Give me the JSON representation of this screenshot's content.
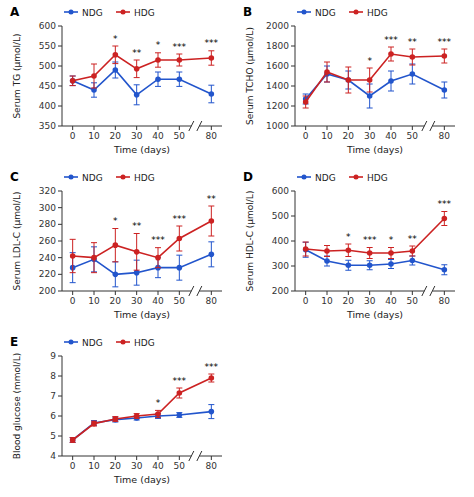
{
  "chart_data": [
    {
      "type": "line",
      "panel_label": "A",
      "xlabel": "Time (days)",
      "ylabel": "Serum TG (μmol/L)",
      "categories": [
        "0",
        "10",
        "20",
        "30",
        "40",
        "50",
        "80"
      ],
      "ylim": [
        350,
        600
      ],
      "yticks": [
        350,
        400,
        450,
        500,
        550,
        600
      ],
      "grid": false,
      "legend": "upper left",
      "series": [
        {
          "name": "NDG",
          "color": "#2255CC",
          "marker": "circle",
          "line_style": "solid",
          "values": [
            463,
            440,
            490,
            428,
            467,
            467,
            430
          ],
          "errors": [
            12,
            18,
            20,
            25,
            18,
            18,
            22
          ]
        },
        {
          "name": "HDG",
          "color": "#CC2222",
          "marker": "circle",
          "line_style": "solid",
          "values": [
            463,
            475,
            528,
            493,
            515,
            515,
            520
          ],
          "errors": [
            12,
            30,
            22,
            22,
            18,
            15,
            18
          ],
          "annotations": [
            null,
            null,
            "*",
            "**",
            "*",
            "***",
            "***"
          ]
        }
      ]
    },
    {
      "type": "line",
      "panel_label": "B",
      "xlabel": "Time (days)",
      "ylabel": "Serum TCHO (μmol/L)",
      "categories": [
        "0",
        "10",
        "20",
        "30",
        "40",
        "50",
        "80"
      ],
      "ylim": [
        1000,
        2000
      ],
      "yticks": [
        1000,
        1200,
        1400,
        1600,
        1800,
        2000
      ],
      "grid": false,
      "legend": "upper left",
      "series": [
        {
          "name": "NDG",
          "color": "#2255CC",
          "marker": "circle",
          "line_style": "solid",
          "values": [
            1270,
            1520,
            1460,
            1300,
            1450,
            1520,
            1360
          ],
          "errors": [
            50,
            80,
            90,
            120,
            100,
            100,
            80
          ]
        },
        {
          "name": "HDG",
          "color": "#CC2222",
          "marker": "circle",
          "line_style": "solid",
          "values": [
            1240,
            1540,
            1460,
            1460,
            1720,
            1690,
            1700
          ],
          "errors": [
            60,
            100,
            130,
            120,
            70,
            80,
            70
          ],
          "annotations": [
            null,
            null,
            null,
            "*",
            "***",
            "**",
            "***"
          ]
        }
      ]
    },
    {
      "type": "line",
      "panel_label": "C",
      "xlabel": "Time (days)",
      "ylabel": "Serum LDL-C (μmol/L)",
      "categories": [
        "0",
        "10",
        "20",
        "30",
        "40",
        "50",
        "80"
      ],
      "ylim": [
        200,
        320
      ],
      "yticks": [
        200,
        220,
        240,
        260,
        280,
        300,
        320
      ],
      "grid": false,
      "legend": "upper left",
      "series": [
        {
          "name": "NDG",
          "color": "#2255CC",
          "marker": "circle",
          "line_style": "solid",
          "values": [
            228,
            238,
            220,
            222,
            228,
            228,
            244
          ],
          "errors": [
            18,
            15,
            15,
            15,
            12,
            15,
            15
          ]
        },
        {
          "name": "HDG",
          "color": "#CC2222",
          "marker": "circle",
          "line_style": "solid",
          "values": [
            242,
            240,
            255,
            247,
            240,
            263,
            284
          ],
          "errors": [
            20,
            18,
            20,
            22,
            12,
            15,
            18
          ],
          "annotations": [
            null,
            null,
            "*",
            "**",
            "***",
            "***",
            "**"
          ]
        }
      ]
    },
    {
      "type": "line",
      "panel_label": "D",
      "xlabel": "Time (days)",
      "ylabel": "Serum HDL-C (μmol/L)",
      "categories": [
        "0",
        "10",
        "20",
        "30",
        "40",
        "50",
        "80"
      ],
      "ylim": [
        200,
        600
      ],
      "yticks": [
        200,
        300,
        400,
        500,
        600
      ],
      "grid": false,
      "legend": "upper left",
      "series": [
        {
          "name": "NDG",
          "color": "#2255CC",
          "marker": "circle",
          "line_style": "solid",
          "values": [
            365,
            320,
            303,
            303,
            308,
            322,
            285
          ],
          "errors": [
            30,
            20,
            20,
            18,
            18,
            18,
            20
          ]
        },
        {
          "name": "HDG",
          "color": "#CC2222",
          "marker": "circle",
          "line_style": "solid",
          "values": [
            368,
            360,
            363,
            352,
            352,
            360,
            490
          ],
          "errors": [
            28,
            22,
            25,
            22,
            22,
            20,
            28
          ],
          "annotations": [
            null,
            null,
            "*",
            "***",
            "*",
            "**",
            "***"
          ]
        }
      ]
    },
    {
      "type": "line",
      "panel_label": "E",
      "xlabel": "Time (days)",
      "ylabel": "Blood glucose (mmol/L)",
      "categories": [
        "0",
        "10",
        "20",
        "30",
        "40",
        "50",
        "80"
      ],
      "ylim": [
        4,
        9
      ],
      "yticks": [
        4,
        5,
        6,
        7,
        8,
        9
      ],
      "grid": false,
      "legend": "upper left",
      "series": [
        {
          "name": "NDG",
          "color": "#2255CC",
          "marker": "circle",
          "line_style": "solid",
          "values": [
            4.8,
            5.65,
            5.82,
            5.9,
            6.0,
            6.05,
            6.22
          ],
          "errors": [
            0.12,
            0.12,
            0.12,
            0.1,
            0.12,
            0.12,
            0.35
          ]
        },
        {
          "name": "HDG",
          "color": "#CC2222",
          "marker": "circle",
          "line_style": "solid",
          "values": [
            4.8,
            5.62,
            5.85,
            6.0,
            6.1,
            7.15,
            7.9
          ],
          "errors": [
            0.12,
            0.12,
            0.12,
            0.12,
            0.18,
            0.25,
            0.2
          ],
          "annotations": [
            null,
            null,
            null,
            null,
            "*",
            "***",
            "***"
          ]
        }
      ]
    }
  ]
}
